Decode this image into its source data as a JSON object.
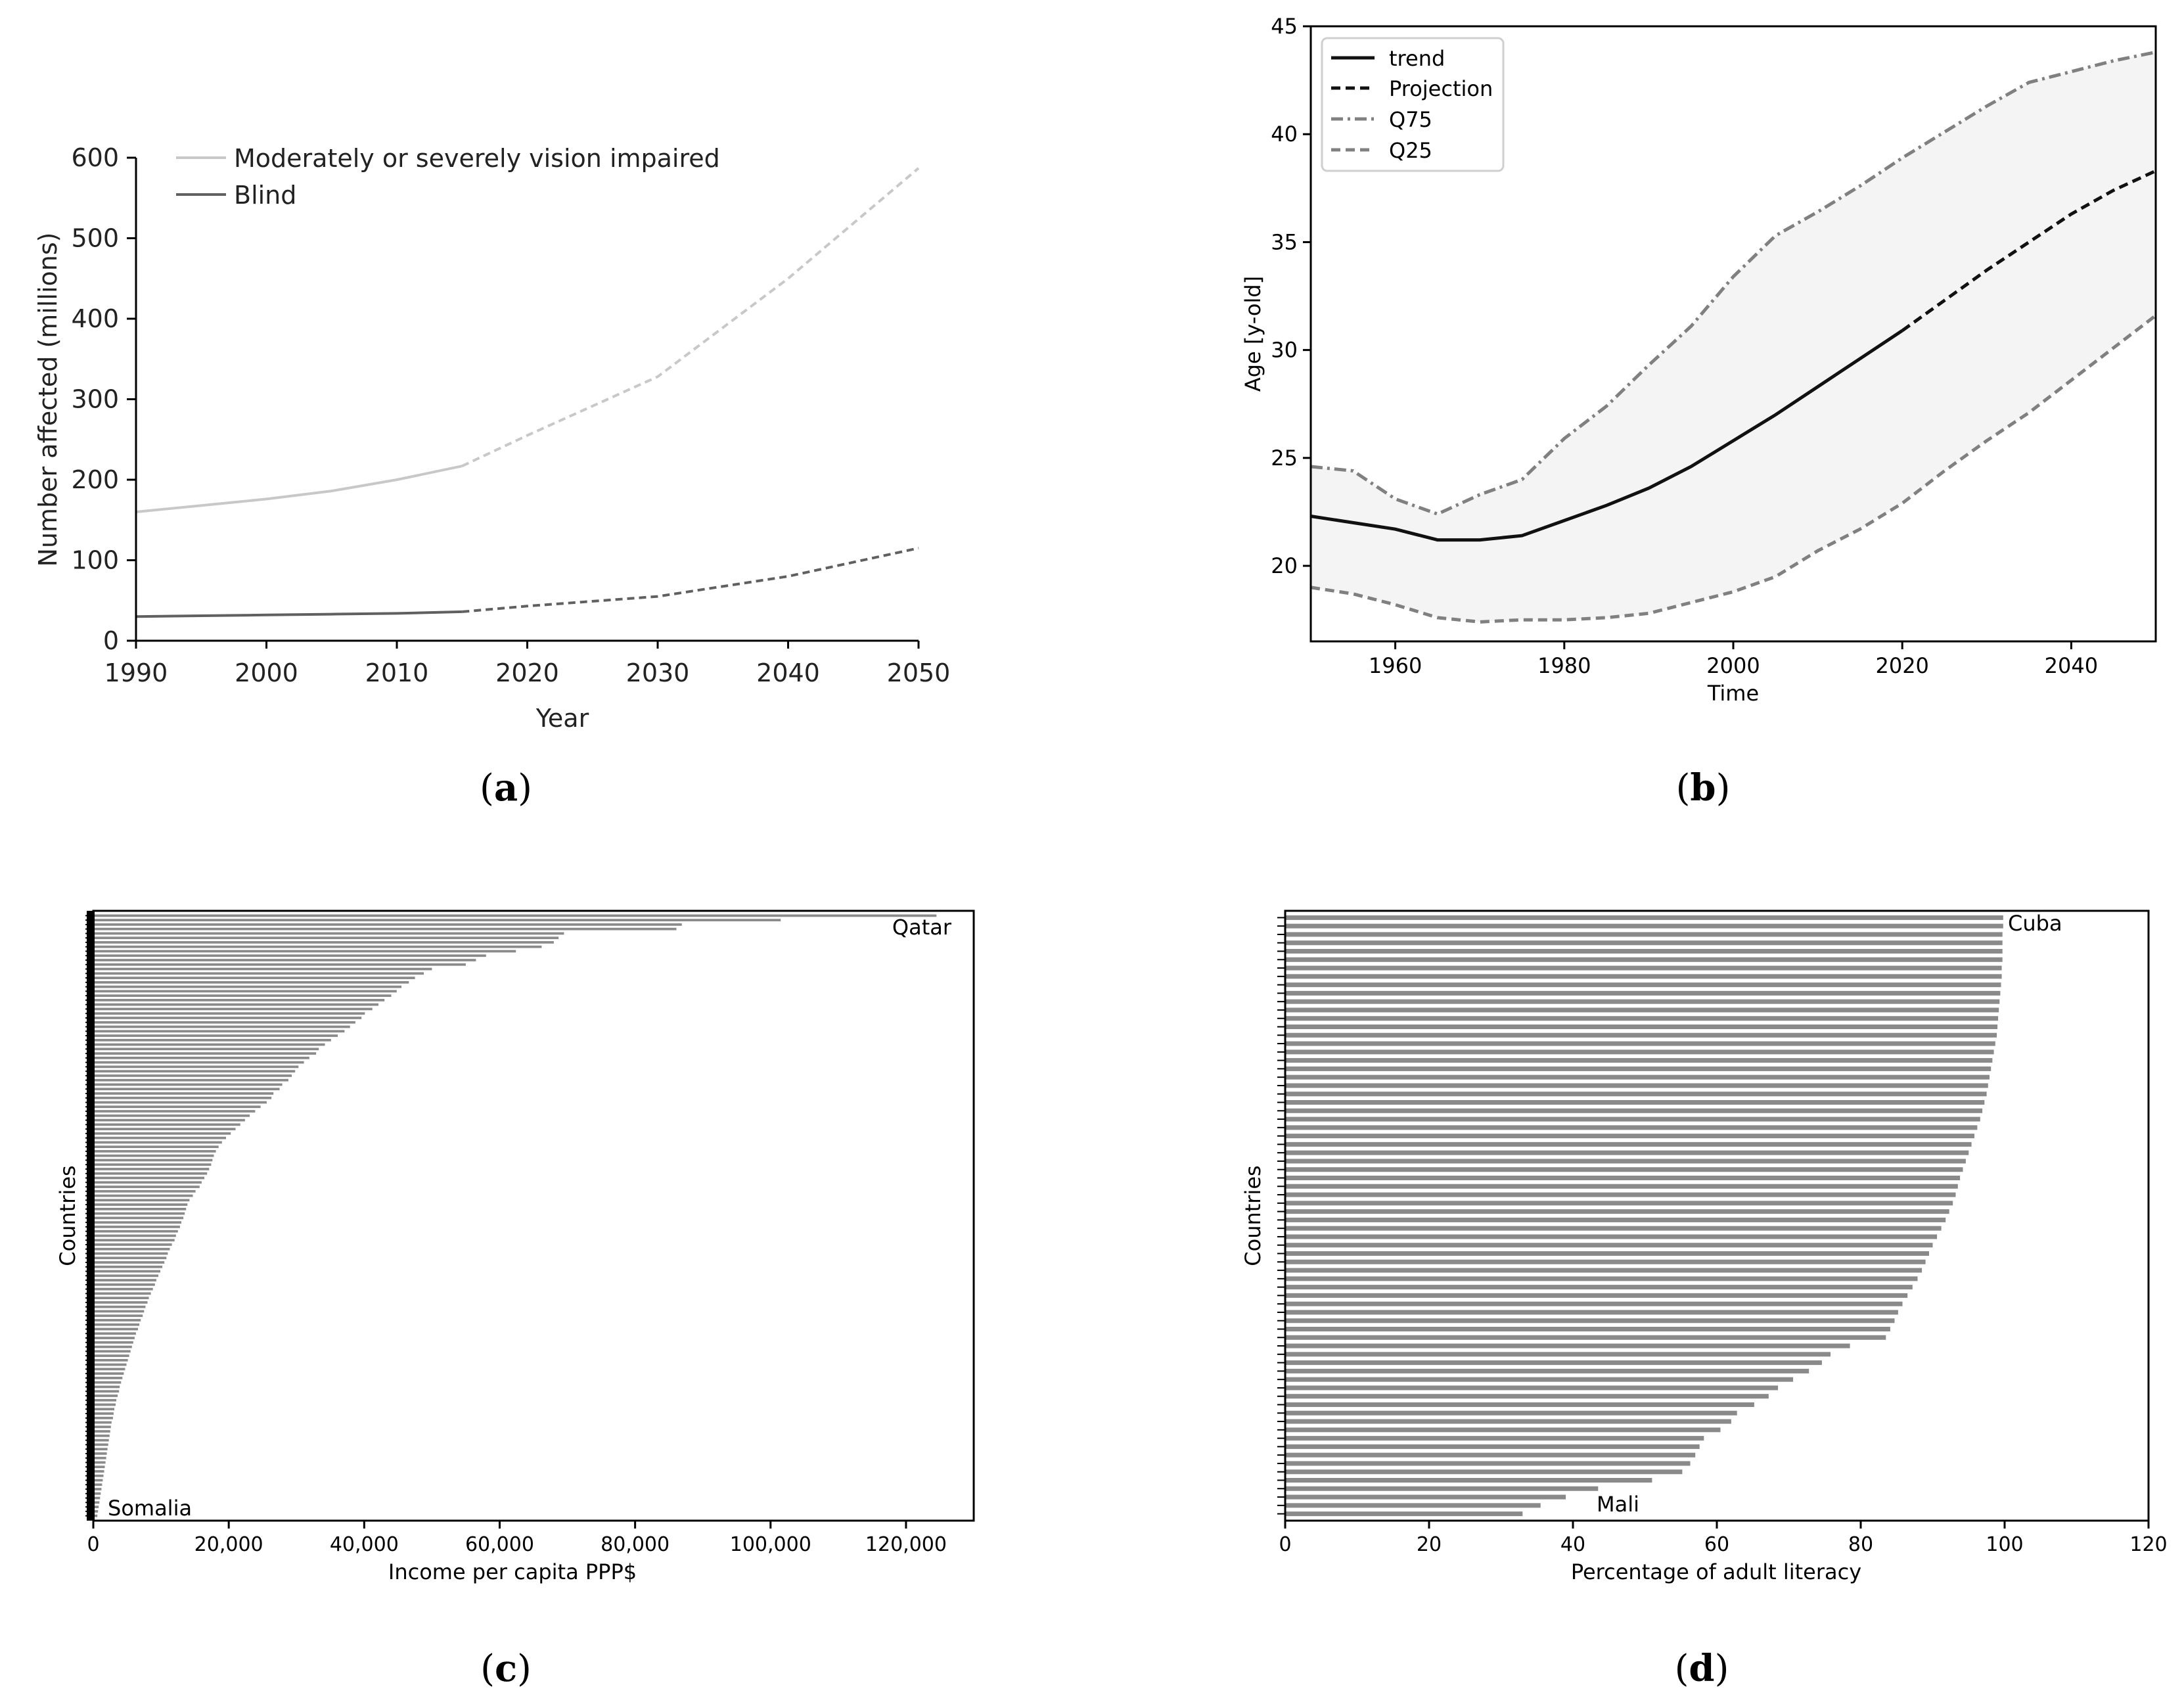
{
  "chart_data": [
    {
      "panel": "a",
      "caption": "(a)",
      "caption_prefix": "(",
      "caption_letter": "a",
      "caption_suffix": ")",
      "type": "line",
      "title": "",
      "xlabel": "Year",
      "ylabel": "Number affected (millions)",
      "xlim": [
        1990,
        2050
      ],
      "ylim": [
        0,
        600
      ],
      "x_ticks": [
        1990,
        2000,
        2010,
        2020,
        2030,
        2040,
        2050
      ],
      "y_ticks": [
        0,
        100,
        200,
        300,
        400,
        500,
        600
      ],
      "legend_position": "top-left",
      "series": [
        {
          "name": "Moderately or severely vision impaired",
          "color": "#c8c8c8",
          "observed": {
            "x": [
              1990,
              1995,
              2000,
              2005,
              2010,
              2015
            ],
            "y": [
              160,
              168,
              176,
              186,
              200,
              217
            ]
          },
          "projected": {
            "x": [
              2015,
              2020,
              2030,
              2040,
              2050
            ],
            "y": [
              217,
              255,
              328,
              450,
              587
            ]
          }
        },
        {
          "name": "Blind",
          "color": "#606060",
          "observed": {
            "x": [
              1990,
              1995,
              2000,
              2005,
              2010,
              2015
            ],
            "y": [
              30,
              31,
              32,
              33,
              34,
              36
            ]
          },
          "projected": {
            "x": [
              2015,
              2020,
              2030,
              2040,
              2050
            ],
            "y": [
              36,
              43,
              55,
              80,
              115
            ]
          }
        }
      ]
    },
    {
      "panel": "b",
      "caption": "(b)",
      "caption_prefix": "(",
      "caption_letter": "b",
      "caption_suffix": ")",
      "type": "line",
      "title": "",
      "xlabel": "Time",
      "ylabel": "Age [y-old]",
      "xlim": [
        1950,
        2050
      ],
      "ylim": [
        16.5,
        45
      ],
      "x_ticks": [
        1960,
        1980,
        2000,
        2020,
        2040
      ],
      "y_ticks": [
        20,
        25,
        30,
        35,
        40,
        45
      ],
      "legend_position": "top-left",
      "band_color": "#f3f4f3",
      "series": [
        {
          "name": "trend",
          "style": "solid",
          "color": "#111111",
          "x": [
            1950,
            1955,
            1960,
            1965,
            1970,
            1975,
            1980,
            1985,
            1990,
            1995,
            2000,
            2005,
            2010,
            2015,
            2020
          ],
          "y": [
            22.3,
            22.0,
            21.7,
            21.2,
            21.2,
            21.4,
            22.1,
            22.8,
            23.6,
            24.6,
            25.8,
            27.0,
            28.3,
            29.6,
            30.9
          ]
        },
        {
          "name": "Projection",
          "style": "dashed",
          "color": "#111111",
          "x": [
            2020,
            2025,
            2030,
            2035,
            2040,
            2045,
            2050
          ],
          "y": [
            30.9,
            32.3,
            33.7,
            35.0,
            36.3,
            37.4,
            38.3
          ]
        },
        {
          "name": "Q75",
          "style": "dashdot",
          "color": "#808080",
          "x": [
            1950,
            1955,
            1960,
            1965,
            1970,
            1975,
            1980,
            1985,
            1990,
            1995,
            2000,
            2005,
            2010,
            2015,
            2020,
            2025,
            2030,
            2035,
            2040,
            2045,
            2050
          ],
          "y": [
            24.6,
            24.4,
            23.1,
            22.4,
            23.3,
            24.0,
            25.9,
            27.4,
            29.3,
            31.1,
            33.4,
            35.3,
            36.4,
            37.6,
            38.9,
            40.1,
            41.3,
            42.4,
            42.9,
            43.4,
            43.8
          ]
        },
        {
          "name": "Q25",
          "style": "dashed",
          "color": "#808080",
          "x": [
            1950,
            1955,
            1960,
            1965,
            1970,
            1975,
            1980,
            1985,
            1990,
            1995,
            2000,
            2005,
            2010,
            2015,
            2020,
            2025,
            2030,
            2035,
            2040,
            2045,
            2050
          ],
          "y": [
            19.0,
            18.7,
            18.2,
            17.6,
            17.4,
            17.5,
            17.5,
            17.6,
            17.8,
            18.3,
            18.8,
            19.5,
            20.7,
            21.7,
            22.9,
            24.4,
            25.8,
            27.1,
            28.6,
            30.1,
            31.6
          ]
        }
      ]
    },
    {
      "panel": "c",
      "caption": "(c)",
      "caption_prefix": "(",
      "caption_letter": "c",
      "caption_suffix": ")",
      "type": "bar",
      "orientation": "horizontal",
      "title": "",
      "xlabel": "Income per capita PPP$",
      "ylabel": "Countries",
      "xlim": [
        0,
        130000
      ],
      "x_ticks": [
        0,
        20000,
        40000,
        60000,
        80000,
        100000,
        120000
      ],
      "x_tick_labels": [
        "0",
        "20,000",
        "40,000",
        "60,000",
        "80,000",
        "100,000",
        "120,000"
      ],
      "bar_color": "#8a8a8a",
      "annotations": [
        {
          "text": "Qatar",
          "position": "top-right"
        },
        {
          "text": "Somalia",
          "position": "bottom-left"
        }
      ],
      "sorted": "descending",
      "values": [
        124500,
        101500,
        86900,
        86100,
        69500,
        68700,
        68000,
        66200,
        62400,
        58000,
        56500,
        55000,
        50000,
        48800,
        47500,
        46600,
        45500,
        44800,
        44000,
        43000,
        42100,
        41200,
        40100,
        39600,
        38700,
        37900,
        37100,
        36100,
        35100,
        34200,
        33300,
        32900,
        31900,
        31100,
        30300,
        29800,
        29300,
        28800,
        27900,
        27500,
        26600,
        26300,
        25600,
        24700,
        23900,
        23100,
        22400,
        21700,
        21000,
        20300,
        19600,
        19000,
        18500,
        18100,
        17800,
        17600,
        17400,
        17100,
        16800,
        16400,
        16000,
        15700,
        15100,
        14700,
        14200,
        13900,
        13700,
        13500,
        13300,
        13000,
        12800,
        12500,
        12200,
        12000,
        11600,
        11300,
        11000,
        10800,
        10500,
        10200,
        9900,
        9600,
        9300,
        9100,
        8800,
        8500,
        8200,
        8000,
        7700,
        7500,
        7300,
        7000,
        6800,
        6600,
        6300,
        6100,
        5900,
        5700,
        5500,
        5300,
        5100,
        4900,
        4700,
        4500,
        4300,
        4100,
        3900,
        3800,
        3600,
        3400,
        3300,
        3100,
        3000,
        2900,
        2700,
        2600,
        2500,
        2400,
        2300,
        2200,
        2100,
        2000,
        1900,
        1800,
        1700,
        1600,
        1500,
        1400,
        1300,
        1200,
        1100,
        1000,
        900,
        800,
        700,
        600
      ]
    },
    {
      "panel": "d",
      "caption": "(d)",
      "caption_prefix": "(",
      "caption_letter": "d",
      "caption_suffix": ")",
      "type": "bar",
      "orientation": "horizontal",
      "title": "",
      "xlabel": "Percentage of adult literacy",
      "ylabel": "Countries",
      "xlim": [
        0,
        120
      ],
      "x_ticks": [
        0,
        20,
        40,
        60,
        80,
        100,
        120
      ],
      "bar_color": "#8a8a8a",
      "annotations": [
        {
          "text": "Cuba",
          "position": "top"
        },
        {
          "text": "Mali",
          "position": "bottom"
        }
      ],
      "sorted": "descending",
      "values": [
        99.8,
        99.8,
        99.7,
        99.7,
        99.7,
        99.7,
        99.6,
        99.6,
        99.5,
        99.4,
        99.3,
        99.2,
        99.1,
        99.0,
        98.9,
        98.7,
        98.5,
        98.3,
        98.1,
        97.9,
        97.7,
        97.5,
        97.2,
        96.9,
        96.6,
        96.2,
        95.8,
        95.4,
        95.0,
        94.6,
        94.2,
        93.8,
        93.5,
        93.2,
        92.8,
        92.3,
        91.8,
        91.2,
        90.6,
        90.0,
        89.5,
        89.0,
        88.5,
        87.9,
        87.2,
        86.5,
        85.8,
        85.2,
        84.7,
        84.1,
        83.5,
        78.5,
        75.8,
        74.6,
        72.8,
        70.6,
        68.5,
        67.2,
        65.2,
        62.8,
        62.0,
        60.5,
        58.2,
        57.6,
        57.0,
        56.3,
        55.2,
        51.0,
        43.5,
        39.0,
        35.5,
        33.0
      ]
    }
  ]
}
